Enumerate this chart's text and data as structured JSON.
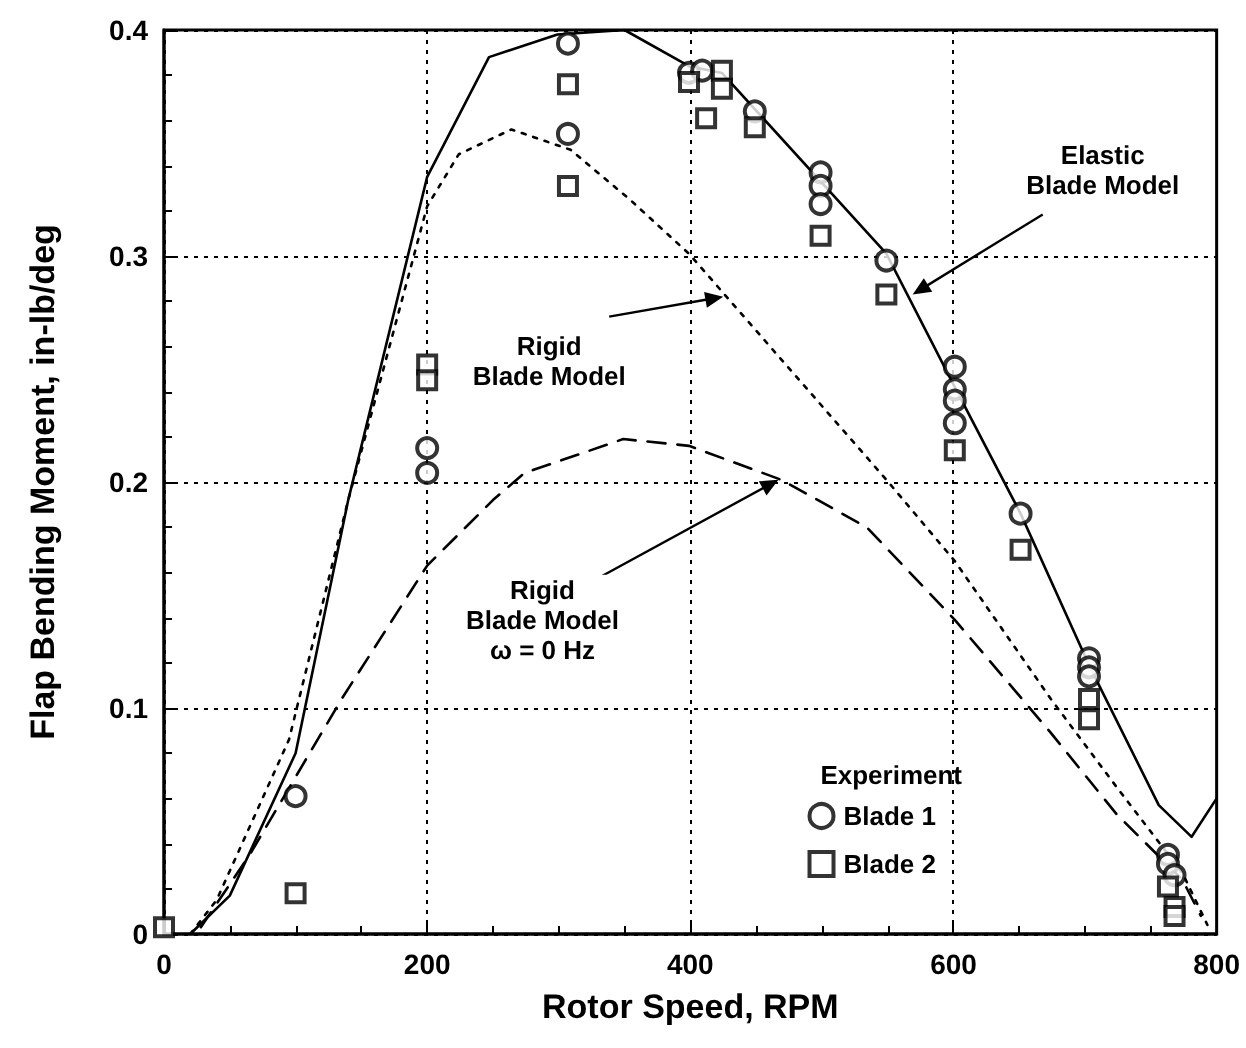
{
  "chart_data": {
    "type": "line",
    "xlabel": "Rotor Speed, RPM",
    "ylabel": "Flap Bending Moment, in-lb/deg",
    "legend_title": "Experiment",
    "legend": "bottom right",
    "grid": true,
    "xlim": [
      0,
      800
    ],
    "xticks": [
      0,
      200,
      400,
      600,
      800
    ],
    "ylim": [
      0,
      0.4
    ],
    "yticks": [
      0,
      0.1,
      0.2,
      0.3,
      0.4
    ],
    "series": [
      {
        "color": "#000000",
        "line_style": "solid",
        "marker": "none",
        "x": [
          20,
          50,
          100,
          140,
          200,
          247,
          299,
          350,
          399,
          424,
          549,
          601,
          651,
          703,
          756,
          781,
          800
        ],
        "values": [
          0,
          0.017,
          0.08,
          0.192,
          0.335,
          0.388,
          0.398,
          0.4,
          0.384,
          0.381,
          0.301,
          0.242,
          0.186,
          0.119,
          0.057,
          0.043,
          0.06
        ]
      },
      {
        "color": "#000000",
        "line_style": "dotted",
        "marker": "none",
        "x": [
          20,
          40,
          95,
          140,
          200,
          224,
          264,
          309,
          354,
          399,
          474,
          549,
          601,
          674,
          724,
          774,
          793
        ],
        "values": [
          0,
          0.015,
          0.086,
          0.192,
          0.322,
          0.345,
          0.356,
          0.347,
          0.325,
          0.301,
          0.251,
          0.201,
          0.165,
          0.104,
          0.065,
          0.027,
          0.004
        ]
      },
      {
        "color": "#000000",
        "line_style": "dashed",
        "marker": "none",
        "x": [
          28,
          65,
          135,
          200,
          250,
          274,
          349,
          399,
          469,
          534,
          601,
          674,
          724,
          774,
          788
        ],
        "values": [
          0.003,
          0.035,
          0.104,
          0.163,
          0.192,
          0.204,
          0.219,
          0.216,
          0.201,
          0.18,
          0.139,
          0.089,
          0.053,
          0.024,
          0.008
        ]
      },
      {
        "type": "scatter",
        "name": "Blade 1",
        "color": "#000000",
        "marker": "circle",
        "x": [
          100,
          200,
          200,
          307,
          307,
          399,
          409,
          449,
          499,
          499,
          499,
          549,
          601,
          601,
          601,
          601,
          651,
          703,
          703,
          703,
          763,
          763,
          768
        ],
        "values": [
          0.061,
          0.215,
          0.204,
          0.394,
          0.354,
          0.381,
          0.382,
          0.364,
          0.337,
          0.331,
          0.323,
          0.298,
          0.251,
          0.241,
          0.236,
          0.226,
          0.186,
          0.122,
          0.118,
          0.114,
          0.035,
          0.031,
          0.026
        ]
      },
      {
        "type": "scatter",
        "name": "Blade 2",
        "color": "#000000",
        "marker": "square",
        "x": [
          0,
          100,
          200,
          200,
          307,
          307,
          399,
          412,
          424,
          424,
          449,
          499,
          549,
          601,
          651,
          703,
          703,
          763,
          768,
          768
        ],
        "values": [
          0.003,
          0.018,
          0.252,
          0.245,
          0.376,
          0.331,
          0.377,
          0.361,
          0.382,
          0.374,
          0.357,
          0.309,
          0.283,
          0.214,
          0.17,
          0.104,
          0.095,
          0.021,
          0.012,
          0.008
        ]
      }
    ],
    "annotations": [
      {
        "text": "Elastic\nBlade Model",
        "x": 569,
        "y": 0.283
      },
      {
        "text": "Rigid\nBlade Model",
        "x": 425,
        "y": 0.282
      },
      {
        "text": "Rigid\nBlade Model\nω = 0 Hz",
        "x": 467,
        "y": 0.201
      }
    ]
  }
}
